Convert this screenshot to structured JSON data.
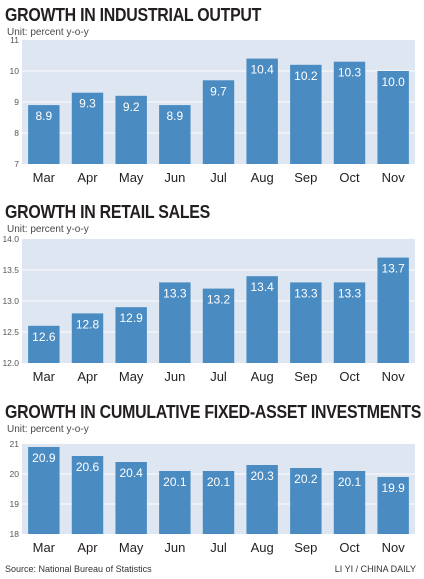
{
  "chart_data": [
    {
      "type": "bar",
      "title": "GROWTH IN INDUSTRIAL OUTPUT",
      "unit": "Unit: percent y-o-y",
      "categories": [
        "Mar",
        "Apr",
        "May",
        "Jun",
        "Jul",
        "Aug",
        "Sep",
        "Oct",
        "Nov"
      ],
      "values": [
        8.9,
        9.3,
        9.2,
        8.9,
        9.7,
        10.4,
        10.2,
        10.3,
        10.0
      ],
      "labels": [
        "8.9",
        "9.3",
        "9.2",
        "8.9",
        "9.7",
        "10.4",
        "10.2",
        "10.3",
        "10.0"
      ],
      "yticks": [
        "7",
        "8",
        "9",
        "10",
        "11"
      ],
      "ylim": [
        7,
        11
      ],
      "grid": true
    },
    {
      "type": "bar",
      "title": "GROWTH IN RETAIL SALES",
      "unit": "Unit: percent y-o-y",
      "categories": [
        "Mar",
        "Apr",
        "May",
        "Jun",
        "Jul",
        "Aug",
        "Sep",
        "Oct",
        "Nov"
      ],
      "values": [
        12.6,
        12.8,
        12.9,
        13.3,
        13.2,
        13.4,
        13.3,
        13.3,
        13.7
      ],
      "labels": [
        "12.6",
        "12.8",
        "12.9",
        "13.3",
        "13.2",
        "13.4",
        "13.3",
        "13.3",
        "13.7"
      ],
      "yticks": [
        "12.0",
        "12.5",
        "13.0",
        "13.5",
        "14.0"
      ],
      "ylim": [
        12.0,
        14.0
      ],
      "grid": true
    },
    {
      "type": "bar",
      "title": "GROWTH IN CUMULATIVE FIXED-ASSET INVESTMENTS",
      "unit": "Unit: percent y-o-y",
      "categories": [
        "Mar",
        "Apr",
        "May",
        "Jun",
        "Jul",
        "Aug",
        "Sep",
        "Oct",
        "Nov"
      ],
      "values": [
        20.9,
        20.6,
        20.4,
        20.1,
        20.1,
        20.3,
        20.2,
        20.1,
        19.9
      ],
      "labels": [
        "20.9",
        "20.6",
        "20.4",
        "20.1",
        "20.1",
        "20.3",
        "20.2",
        "20.1",
        "19.9"
      ],
      "yticks": [
        "18",
        "19",
        "20",
        "21"
      ],
      "ylim": [
        18,
        21
      ],
      "grid": true
    }
  ],
  "colors": {
    "bar": "#4a8bc2",
    "plot_bg": "#dde6f1",
    "grid": "#ffffff",
    "bar_label": "#ffffff",
    "text": "#231f20"
  },
  "footer": {
    "source": "Source: National Bureau of Statistics",
    "credit": "LI YI / CHINA DAILY"
  }
}
